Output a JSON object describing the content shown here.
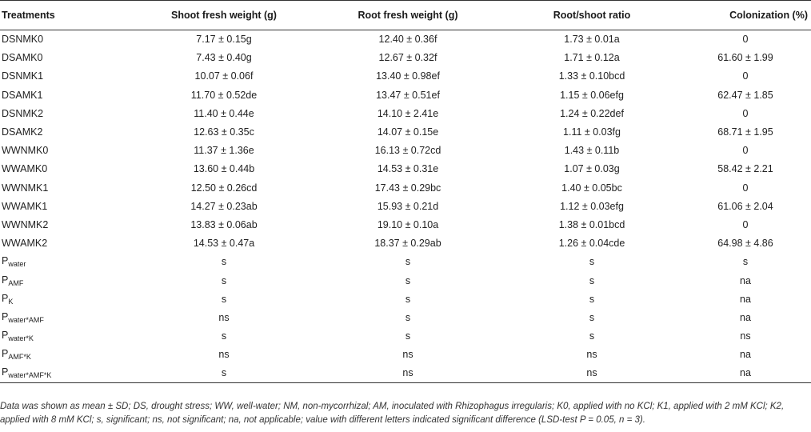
{
  "headers": [
    "Treatments",
    "Shoot fresh weight (g)",
    "Root fresh weight (g)",
    "Root/shoot ratio",
    "Colonization (%)"
  ],
  "rows": [
    [
      "DSNMK0",
      "7.17 ± 0.15g",
      "12.40 ± 0.36f",
      "1.73 ± 0.01a",
      "0"
    ],
    [
      "DSAMK0",
      "7.43 ± 0.40g",
      "12.67 ± 0.32f",
      "1.71 ± 0.12a",
      "61.60 ± 1.99"
    ],
    [
      "DSNMK1",
      "10.07 ± 0.06f",
      "13.40 ± 0.98ef",
      "1.33 ± 0.10bcd",
      "0"
    ],
    [
      "DSAMK1",
      "11.70 ± 0.52de",
      "13.47 ± 0.51ef",
      "1.15 ± 0.06efg",
      "62.47 ± 1.85"
    ],
    [
      "DSNMK2",
      "11.40 ± 0.44e",
      "14.10 ± 2.41e",
      "1.24 ± 0.22def",
      "0"
    ],
    [
      "DSAMK2",
      "12.63 ± 0.35c",
      "14.07 ± 0.15e",
      "1.11 ± 0.03fg",
      "68.71 ± 1.95"
    ],
    [
      "WWNMK0",
      "11.37 ± 1.36e",
      "16.13 ± 0.72cd",
      "1.43 ± 0.11b",
      "0"
    ],
    [
      "WWAMK0",
      "13.60 ± 0.44b",
      "14.53 ± 0.31e",
      "1.07 ± 0.03g",
      "58.42 ± 2.21"
    ],
    [
      "WWNMK1",
      "12.50 ± 0.26cd",
      "17.43 ± 0.29bc",
      "1.40 ± 0.05bc",
      "0"
    ],
    [
      "WWAMK1",
      "14.27 ± 0.23ab",
      "15.93 ± 0.21d",
      "1.12 ± 0.03efg",
      "61.06 ± 2.04"
    ],
    [
      "WWNMK2",
      "13.83 ± 0.06ab",
      "19.10 ± 0.10a",
      "1.38 ± 0.01bcd",
      "0"
    ],
    [
      "WWAMK2",
      "14.53 ± 0.47a",
      "18.37 ± 0.29ab",
      "1.26 ± 0.04cde",
      "64.98 ± 4.86"
    ]
  ],
  "p_rows": [
    {
      "p": "P",
      "sub": "water",
      "values": [
        "s",
        "s",
        "s",
        "s"
      ]
    },
    {
      "p": "P",
      "sub": "AMF",
      "values": [
        "s",
        "s",
        "s",
        "na"
      ]
    },
    {
      "p": "P",
      "sub": "K",
      "values": [
        "s",
        "s",
        "s",
        "na"
      ]
    },
    {
      "p": "P",
      "sub": "water*AMF",
      "values": [
        "ns",
        "s",
        "s",
        "na"
      ]
    },
    {
      "p": "P",
      "sub": "water*K",
      "values": [
        "s",
        "s",
        "s",
        "ns"
      ]
    },
    {
      "p": "P",
      "sub": "AMF*K",
      "values": [
        "ns",
        "ns",
        "ns",
        "na"
      ]
    },
    {
      "p": "P",
      "sub": "water*AMF*K",
      "values": [
        "s",
        "ns",
        "ns",
        "na"
      ]
    }
  ],
  "footnote": "Data was shown as mean ± SD; DS, drought stress; WW, well-water; NM, non-mycorrhizal; AM, inoculated with Rhizophagus irregularis; K0, applied with no KCl; K1, applied with 2 mM KCl; K2, applied with 8 mM KCl; s, significant; ns, not significant; na, not applicable; value with different letters indicated significant difference (LSD-test P = 0.05, n = 3)."
}
